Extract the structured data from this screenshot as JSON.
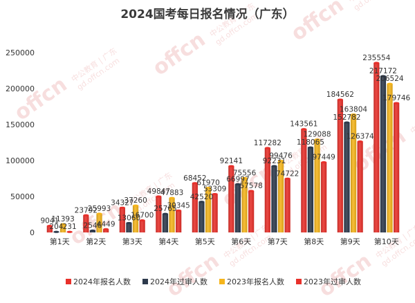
{
  "chart_data": {
    "type": "bar",
    "title": "2024国考每日报名情况（广东）",
    "categories": [
      "第1天",
      "第2天",
      "第3天",
      "第4天",
      "第5天",
      "第6天",
      "第7天",
      "第8天",
      "第9天",
      "第10天"
    ],
    "series": [
      {
        "name": "2024年报名人数",
        "color": "#e8302a",
        "values": [
          9041,
          23792,
          34327,
          49847,
          68452,
          92141,
          117282,
          143561,
          184562,
          235554
        ]
      },
      {
        "name": "2024年过审人数",
        "color": "#2d3a4c",
        "values": [
          204,
          2546,
          13060,
          25765,
          42520,
          66997,
          92231,
          118065,
          152782,
          217172
        ]
      },
      {
        "name": "2023年报名人数",
        "color": "#f5b51c",
        "values": [
          11393,
          25993,
          37260,
          47883,
          61970,
          75556,
          99476,
          129088,
          163804,
          206524
        ]
      },
      {
        "name": "2023年过审人数",
        "color": "#e8302a",
        "values": [
          231,
          4449,
          16700,
          30345,
          53309,
          57578,
          74722,
          97449,
          126374,
          179746
        ]
      }
    ],
    "ylim": [
      0,
      250000
    ],
    "yticks": [
      0,
      50000,
      100000,
      150000,
      200000,
      250000
    ],
    "xlabel": "",
    "ylabel": "",
    "grid": false,
    "legend_position": "bottom"
  },
  "watermark": {
    "brand": "offcn",
    "text": "中公教育 | 广东",
    "url": "gd.offcn.com"
  }
}
